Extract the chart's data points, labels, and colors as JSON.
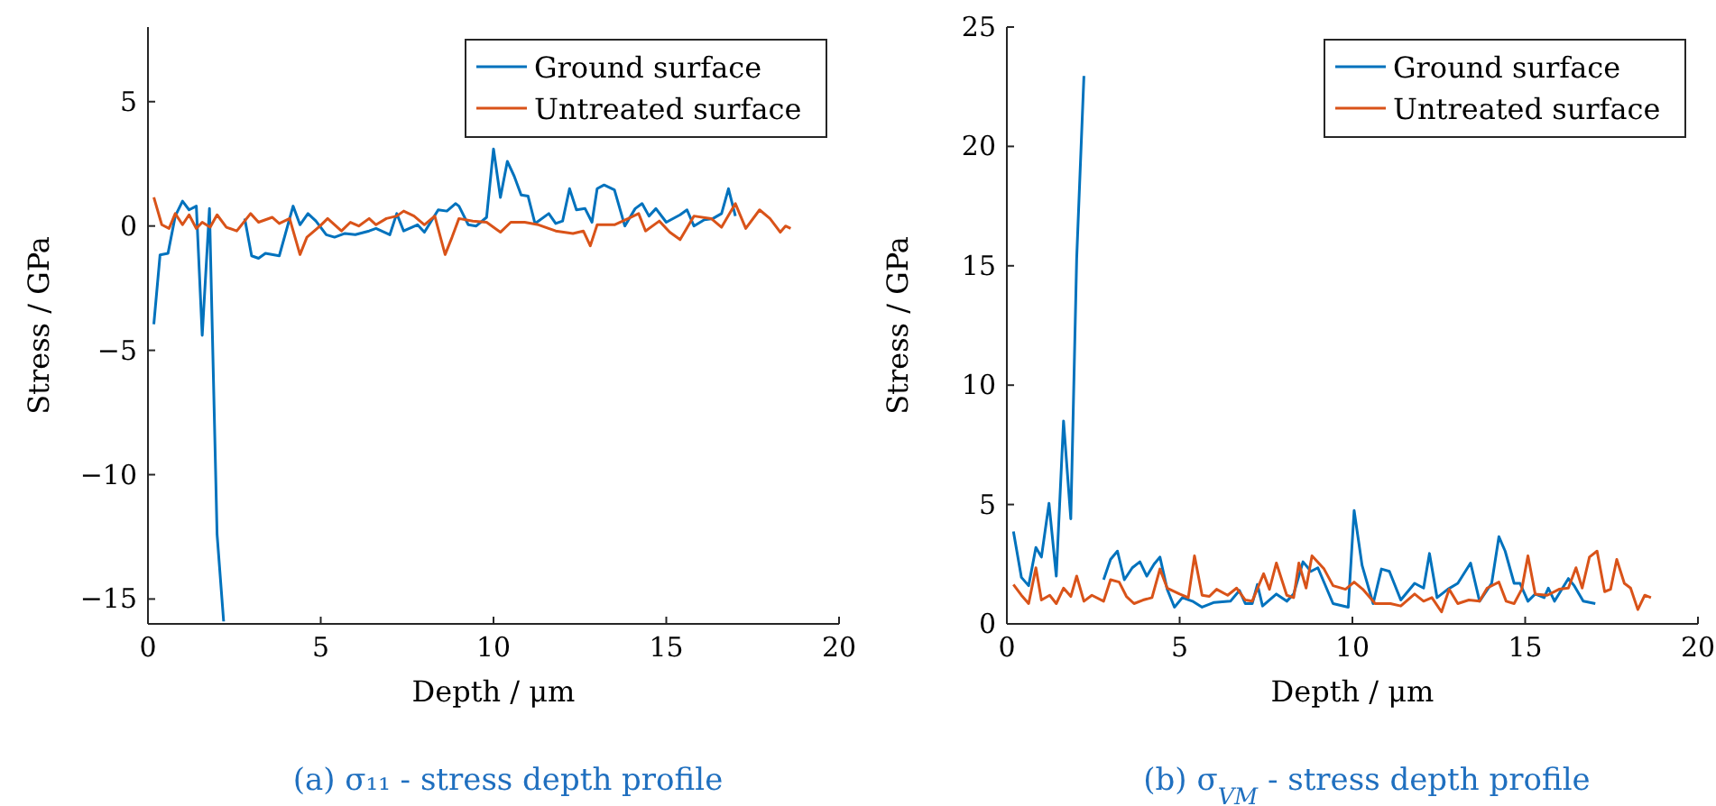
{
  "chart_data": [
    {
      "type": "line",
      "title": "(a) σ₁₁ - stress depth profile",
      "xlabel": "Depth / μm",
      "ylabel": "Stress / GPa",
      "xlim": [
        0,
        20
      ],
      "ylim": [
        -16,
        8
      ],
      "xticks": [
        0,
        5,
        10,
        15,
        20
      ],
      "yticks": [
        {
          "value": -15,
          "label": "−15"
        },
        {
          "value": -10,
          "label": "−10"
        },
        {
          "value": -5,
          "label": "−5"
        },
        0,
        5
      ],
      "grid": false,
      "legend": "top right",
      "line_style": "solid",
      "marker": "none",
      "series": [
        {
          "name": "Ground surface",
          "color": "#0072bd",
          "x": [
            0.17,
            0.35,
            0.58,
            0.79,
            1.0,
            1.19,
            1.4,
            1.57,
            1.78,
            2.0,
            2.19,
            2.5,
            2.8,
            3.0,
            3.2,
            3.4,
            3.8,
            4.2,
            4.4,
            4.63,
            4.86,
            5.16,
            5.4,
            5.7,
            6.0,
            6.4,
            6.6,
            7.0,
            7.2,
            7.4,
            7.8,
            8.0,
            8.4,
            8.65,
            8.9,
            9.0,
            9.27,
            9.5,
            9.8,
            10.0,
            10.2,
            10.4,
            10.6,
            10.8,
            11.0,
            11.2,
            11.6,
            11.8,
            12.0,
            12.2,
            12.4,
            12.65,
            12.85,
            13.0,
            13.2,
            13.5,
            13.8,
            14.1,
            14.3,
            14.5,
            14.7,
            15.0,
            15.4,
            15.6,
            15.8,
            16.1,
            16.35,
            16.6,
            16.8,
            17.0
          ],
          "values": [
            -3.95,
            -1.16,
            -1.1,
            0.4,
            1.0,
            0.65,
            0.8,
            -4.4,
            0.7,
            -12.4,
            -15.9,
            null,
            0.3,
            -1.2,
            -1.3,
            -1.1,
            -1.2,
            0.8,
            0.05,
            0.5,
            0.2,
            -0.35,
            -0.45,
            -0.3,
            -0.35,
            -0.2,
            -0.1,
            -0.35,
            0.5,
            -0.2,
            0.05,
            -0.25,
            0.65,
            0.6,
            0.9,
            0.8,
            0.05,
            0,
            0.35,
            3.1,
            1.15,
            2.6,
            2.0,
            1.25,
            1.2,
            0.1,
            0.5,
            0.1,
            0.2,
            1.5,
            0.65,
            0.7,
            0.15,
            1.5,
            1.65,
            1.45,
            0,
            0.7,
            0.9,
            0.4,
            0.7,
            0.15,
            0.45,
            0.65,
            0,
            0.25,
            0.3,
            0.5,
            1.5,
            0.4
          ]
        },
        {
          "name": "Untreated surface",
          "color": "#d95319",
          "x": [
            0.17,
            0.4,
            0.61,
            0.79,
            1.0,
            1.19,
            1.4,
            1.57,
            1.8,
            2.0,
            2.27,
            2.57,
            2.97,
            3.2,
            3.6,
            3.8,
            4.1,
            4.4,
            4.6,
            4.98,
            5.2,
            5.6,
            5.86,
            6.1,
            6.4,
            6.6,
            6.9,
            7.2,
            7.4,
            7.7,
            8.0,
            8.3,
            8.6,
            8.8,
            9.0,
            9.4,
            9.8,
            10.2,
            10.5,
            10.9,
            11.3,
            11.8,
            12.3,
            12.6,
            12.8,
            13.0,
            13.5,
            13.9,
            14.2,
            14.4,
            14.8,
            15.1,
            15.4,
            15.8,
            16.3,
            16.6,
            17.0,
            17.3,
            17.7,
            18.0,
            18.3,
            18.45,
            18.6
          ],
          "values": [
            1.15,
            0.05,
            -0.1,
            0.5,
            0.05,
            0.45,
            -0.1,
            0.15,
            -0.05,
            0.45,
            -0.05,
            -0.2,
            0.5,
            0.15,
            0.35,
            0.1,
            0.3,
            -1.15,
            -0.45,
            0,
            0.3,
            -0.2,
            0.15,
            0,
            0.3,
            0.05,
            0.3,
            0.4,
            0.6,
            0.4,
            0.05,
            0.4,
            -1.15,
            -0.45,
            0.3,
            0.2,
            0.15,
            -0.25,
            0.15,
            0.15,
            0.05,
            -0.2,
            -0.3,
            -0.2,
            -0.8,
            0.05,
            0.05,
            0.3,
            0.5,
            -0.2,
            0.2,
            -0.25,
            -0.55,
            0.4,
            0.3,
            -0.05,
            0.9,
            -0.1,
            0.65,
            0.3,
            -0.25,
            0,
            -0.1
          ]
        }
      ]
    },
    {
      "type": "line",
      "title": "(b) σ$_{VM}$ - stress depth profile",
      "xlabel": "Depth / μm",
      "ylabel": "Stress / GPa",
      "xlim": [
        0,
        20
      ],
      "ylim": [
        0,
        25
      ],
      "xticks": [
        0,
        5,
        10,
        15,
        20
      ],
      "yticks": [
        0,
        5,
        10,
        15,
        20,
        25
      ],
      "grid": false,
      "legend": "top right",
      "line_style": "solid",
      "marker": "none",
      "series": [
        {
          "name": "Ground surface",
          "color": "#0072bd",
          "x": [
            0.19,
            0.42,
            0.63,
            0.84,
            1.0,
            1.22,
            1.43,
            1.64,
            1.85,
            2.02,
            2.23,
            2.5,
            2.8,
            3.0,
            3.2,
            3.4,
            3.63,
            3.85,
            4.05,
            4.26,
            4.43,
            4.64,
            4.85,
            5.08,
            5.37,
            5.65,
            6.0,
            6.47,
            6.73,
            6.9,
            7.1,
            7.25,
            7.4,
            7.8,
            8.1,
            8.3,
            8.57,
            8.8,
            9.0,
            9.44,
            9.88,
            10.05,
            10.28,
            10.6,
            10.84,
            11.07,
            11.4,
            11.8,
            12.06,
            12.23,
            12.45,
            12.76,
            13.05,
            13.42,
            13.68,
            14.03,
            14.24,
            14.42,
            14.68,
            14.85,
            15.08,
            15.29,
            15.55,
            15.67,
            15.85,
            16.25,
            16.42,
            16.68,
            17.03
          ],
          "values": [
            3.87,
            1.95,
            1.6,
            3.2,
            2.8,
            5.05,
            2.0,
            8.5,
            4.4,
            15.3,
            22.95,
            null,
            1.85,
            2.7,
            3.05,
            1.85,
            2.35,
            2.6,
            2.0,
            2.5,
            2.8,
            1.45,
            0.7,
            1.1,
            0.95,
            0.7,
            0.9,
            0.95,
            1.4,
            0.85,
            0.85,
            1.65,
            0.75,
            1.25,
            0.95,
            1.25,
            2.6,
            2.2,
            2.35,
            0.85,
            0.7,
            4.75,
            2.45,
            0.85,
            2.3,
            2.2,
            1.0,
            1.7,
            1.5,
            2.95,
            1.1,
            1.45,
            1.7,
            2.55,
            0.95,
            1.7,
            3.65,
            3.05,
            1.7,
            1.7,
            0.95,
            1.25,
            1.1,
            1.5,
            0.95,
            1.9,
            1.6,
            0.95,
            0.85
          ]
        },
        {
          "name": "Untreated surface",
          "color": "#d95319",
          "x": [
            0.19,
            0.42,
            0.63,
            0.84,
            1.0,
            1.24,
            1.43,
            1.64,
            1.85,
            2.02,
            2.23,
            2.46,
            2.8,
            3.0,
            3.25,
            3.46,
            3.68,
            3.94,
            4.2,
            4.43,
            4.64,
            5.0,
            5.25,
            5.43,
            5.65,
            5.86,
            6.07,
            6.39,
            6.65,
            6.9,
            7.1,
            7.43,
            7.6,
            7.8,
            8.1,
            8.3,
            8.45,
            8.66,
            8.83,
            9.18,
            9.44,
            9.8,
            10.05,
            10.3,
            10.66,
            11.1,
            11.4,
            11.8,
            12.06,
            12.3,
            12.58,
            12.8,
            13.05,
            13.37,
            13.68,
            13.9,
            14.24,
            14.45,
            14.68,
            14.9,
            15.08,
            15.29,
            15.64,
            15.98,
            16.25,
            16.47,
            16.65,
            16.86,
            17.08,
            17.3,
            17.47,
            17.65,
            17.87,
            18.05,
            18.26,
            18.46,
            18.64
          ],
          "values": [
            1.65,
            1.2,
            0.85,
            2.35,
            1.0,
            1.2,
            0.85,
            1.5,
            1.15,
            2.0,
            0.95,
            1.2,
            0.95,
            1.85,
            1.75,
            1.15,
            0.85,
            1.0,
            1.1,
            2.3,
            1.5,
            1.25,
            1.1,
            2.85,
            1.2,
            1.15,
            1.45,
            1.2,
            1.5,
            1.0,
            0.95,
            2.1,
            1.45,
            2.55,
            1.2,
            1.1,
            2.55,
            1.5,
            2.85,
            2.3,
            1.6,
            1.45,
            1.75,
            1.45,
            0.85,
            0.85,
            0.75,
            1.25,
            0.95,
            1.1,
            0.5,
            1.45,
            0.85,
            1.0,
            0.95,
            1.5,
            1.75,
            0.95,
            0.85,
            1.45,
            2.85,
            1.25,
            1.2,
            1.45,
            1.5,
            2.35,
            1.5,
            2.8,
            3.05,
            1.35,
            1.45,
            2.7,
            1.7,
            1.5,
            0.6,
            1.2,
            1.1
          ]
        }
      ]
    }
  ]
}
